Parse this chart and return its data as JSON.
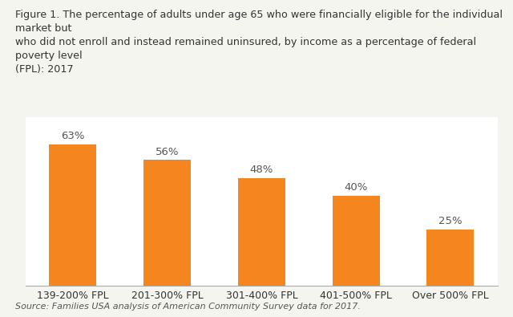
{
  "categories": [
    "139-200% FPL",
    "201-300% FPL",
    "301-400% FPL",
    "401-500% FPL",
    "Over 500% FPL"
  ],
  "values": [
    63,
    56,
    48,
    40,
    25
  ],
  "labels": [
    "63%",
    "56%",
    "48%",
    "40%",
    "25%"
  ],
  "bar_color": "#F5851F",
  "background_color": "#FFFFFF",
  "figure_background_color": "#F5F5F0",
  "title_line1": "Figure 1. The percentage of adults under age 65 who were financially eligible for the individual market but",
  "title_line2": "who did not enroll and instead remained uninsured, by income as a percentage of federal poverty level",
  "title_line3": "(FPL): 2017",
  "source_text": "Source: Families USA analysis of American Community Survey data for 2017.",
  "title_fontsize": 9.2,
  "label_fontsize": 9.5,
  "tick_fontsize": 9.0,
  "source_fontsize": 8.0,
  "title_color": "#333333",
  "label_color": "#555555",
  "tick_color": "#333333",
  "source_color": "#555555",
  "ylim": [
    0,
    75
  ],
  "chart_box_color": "#FFFFFF"
}
